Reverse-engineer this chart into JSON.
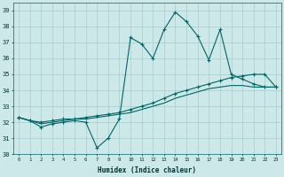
{
  "xlabel": "Humidex (Indice chaleur)",
  "ylabel": "",
  "background_color": "#cce8e8",
  "grid_color": "#aacccc",
  "line_color": "#006666",
  "xlim": [
    -0.5,
    23.5
  ],
  "ylim": [
    30,
    39.5
  ],
  "yticks": [
    30,
    31,
    32,
    33,
    34,
    35,
    36,
    37,
    38,
    39
  ],
  "xticks": [
    0,
    1,
    2,
    3,
    4,
    5,
    6,
    7,
    8,
    9,
    10,
    11,
    12,
    13,
    14,
    15,
    16,
    17,
    18,
    19,
    20,
    21,
    22,
    23
  ],
  "series1_x": [
    0,
    1,
    2,
    3,
    4,
    5,
    6,
    7,
    8,
    9,
    10,
    11,
    12,
    13,
    14,
    15,
    16,
    17,
    18,
    19,
    20,
    21,
    22,
    23
  ],
  "series1_y": [
    32.3,
    32.1,
    31.7,
    31.9,
    32.0,
    32.1,
    32.0,
    30.4,
    31.0,
    32.2,
    37.3,
    36.9,
    36.0,
    37.8,
    38.9,
    38.3,
    37.4,
    35.9,
    37.8,
    35.0,
    34.7,
    34.4,
    34.2,
    34.2
  ],
  "series2_x": [
    0,
    1,
    2,
    3,
    4,
    5,
    6,
    7,
    8,
    9,
    10,
    11,
    12,
    13,
    14,
    15,
    16,
    17,
    18,
    19,
    20,
    21,
    22,
    23
  ],
  "series2_y": [
    32.3,
    32.1,
    32.0,
    32.1,
    32.2,
    32.2,
    32.3,
    32.4,
    32.5,
    32.6,
    32.8,
    33.0,
    33.2,
    33.5,
    33.8,
    34.0,
    34.2,
    34.4,
    34.6,
    34.8,
    34.9,
    35.0,
    35.0,
    34.2
  ],
  "series3_x": [
    0,
    1,
    2,
    3,
    4,
    5,
    6,
    7,
    8,
    9,
    10,
    11,
    12,
    13,
    14,
    15,
    16,
    17,
    18,
    19,
    20,
    21,
    22,
    23
  ],
  "series3_y": [
    32.3,
    32.1,
    31.9,
    32.0,
    32.1,
    32.2,
    32.2,
    32.3,
    32.4,
    32.5,
    32.6,
    32.8,
    33.0,
    33.2,
    33.5,
    33.7,
    33.9,
    34.1,
    34.2,
    34.3,
    34.3,
    34.2,
    34.2,
    34.2
  ]
}
